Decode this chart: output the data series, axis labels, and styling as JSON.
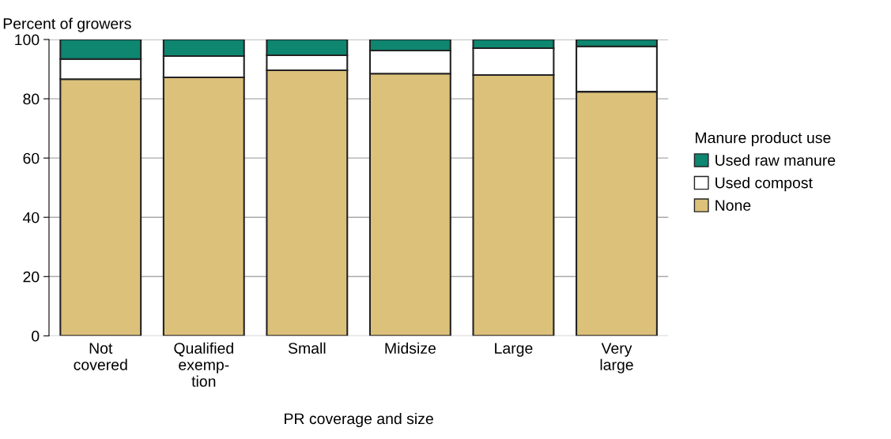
{
  "chart_data": {
    "type": "bar",
    "stacked": true,
    "ylabel": "Percent of growers",
    "xlabel": "PR coverage and size",
    "legend_title": "Manure product use",
    "categories": [
      "Not\ncovered",
      "Qualified\nexemp-\ntion",
      "Small",
      "Midsize",
      "Large",
      "Very\nlarge"
    ],
    "series": [
      {
        "name": "None",
        "color": "#dcc17b",
        "values": [
          86.6,
          87.2,
          89.6,
          88.5,
          88.0,
          82.4
        ]
      },
      {
        "name": "Used compost",
        "color": "#ffffff",
        "values": [
          6.8,
          7.2,
          5.1,
          7.8,
          9.1,
          15.3
        ]
      },
      {
        "name": "Used raw manure",
        "color": "#0e8670",
        "values": [
          6.6,
          5.6,
          5.3,
          3.7,
          2.9,
          2.3
        ]
      }
    ],
    "ylim": [
      0,
      100
    ],
    "yticks": [
      0,
      20,
      40,
      60,
      80,
      100
    ],
    "grid": "y",
    "legend": "right"
  }
}
